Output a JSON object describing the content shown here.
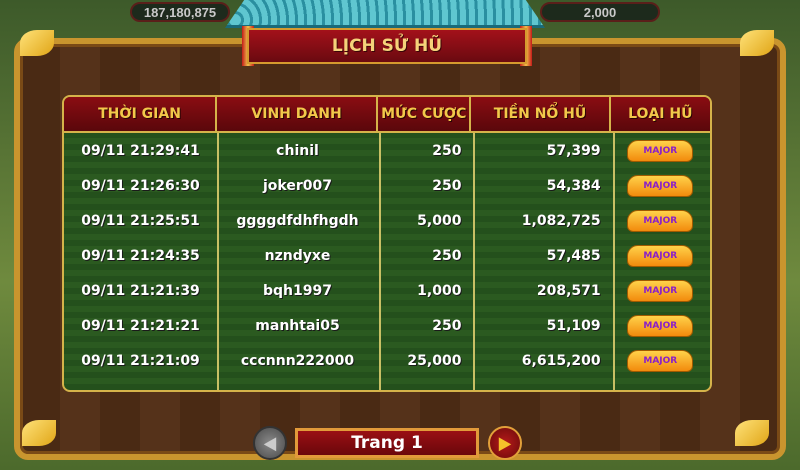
{
  "hud": {
    "balance": "187,180,875",
    "bet": "2,000"
  },
  "title": "LỊCH SỬ HŨ",
  "table": {
    "headers": [
      "THỜI GIAN",
      "VINH DANH",
      "MỨC CƯỢC",
      "TIỀN NỔ HŨ",
      "LOẠI HŨ"
    ],
    "rows": [
      {
        "time": "09/11 21:29:41",
        "name": "chinil",
        "bet": "250",
        "jackpot": "57,399",
        "type": "MAJOR"
      },
      {
        "time": "09/11 21:26:30",
        "name": "joker007",
        "bet": "250",
        "jackpot": "54,384",
        "type": "MAJOR"
      },
      {
        "time": "09/11 21:25:51",
        "name": "ggggdfdhfhgdh",
        "bet": "5,000",
        "jackpot": "1,082,725",
        "type": "MAJOR"
      },
      {
        "time": "09/11 21:24:35",
        "name": "nzndyxe",
        "bet": "250",
        "jackpot": "57,485",
        "type": "MAJOR"
      },
      {
        "time": "09/11 21:21:39",
        "name": "bqh1997",
        "bet": "1,000",
        "jackpot": "208,571",
        "type": "MAJOR"
      },
      {
        "time": "09/11 21:21:21",
        "name": "manhtai05",
        "bet": "250",
        "jackpot": "51,109",
        "type": "MAJOR"
      },
      {
        "time": "09/11 21:21:09",
        "name": "cccnnn222000",
        "bet": "25,000",
        "jackpot": "6,615,200",
        "type": "MAJOR"
      }
    ]
  },
  "pagination": {
    "label": "Trang 1",
    "prev_icon": "arrow-left-icon",
    "next_icon": "arrow-right-icon"
  },
  "colors": {
    "header": "#8a0d12",
    "header_text": "#f2c84a",
    "table_bg": "#2b5a20",
    "badge": "#f2a51c"
  }
}
